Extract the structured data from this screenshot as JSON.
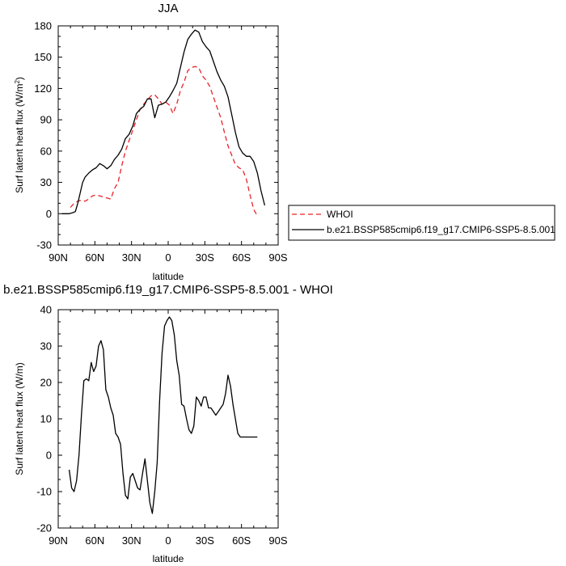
{
  "chart_data": [
    {
      "type": "line",
      "title": "JJA",
      "xlabel": "latitude",
      "ylabel": "Surf latent heat flux (W/m",
      "ylabel_sup": "2",
      "ylabel_close": ")",
      "xlim": [
        90,
        -90
      ],
      "ylim": [
        -30,
        180
      ],
      "xticks": [
        {
          "value": 90,
          "label": "90N"
        },
        {
          "value": 60,
          "label": "60N"
        },
        {
          "value": 30,
          "label": "30N"
        },
        {
          "value": 0,
          "label": "0"
        },
        {
          "value": -30,
          "label": "30S"
        },
        {
          "value": -60,
          "label": "60S"
        },
        {
          "value": -90,
          "label": "90S"
        }
      ],
      "yticks": [
        -30,
        0,
        30,
        60,
        90,
        120,
        150,
        180
      ],
      "grid": false,
      "legend_position": "right-outside",
      "series": [
        {
          "name": "WHOI",
          "color": "#e8232a",
          "dash": "dashed",
          "x": [
            80,
            77,
            74,
            71,
            68,
            65,
            62,
            59,
            56,
            53,
            50,
            47,
            44,
            41,
            38,
            35,
            32,
            29,
            26,
            23,
            20,
            17,
            14,
            11,
            8,
            5,
            2,
            -1,
            -4,
            -7,
            -10,
            -13,
            -16,
            -19,
            -22,
            -25,
            -28,
            -31,
            -34,
            -37,
            -40,
            -43,
            -46,
            -49,
            -52,
            -55,
            -58,
            -61,
            -64,
            -67,
            -70,
            -73
          ],
          "y": [
            6,
            10,
            12,
            13,
            12,
            14,
            17,
            18,
            17,
            16,
            15,
            14,
            24,
            30,
            46,
            60,
            70,
            80,
            90,
            100,
            105,
            109,
            113,
            114,
            110,
            105,
            107,
            104,
            96,
            105,
            118,
            126,
            137,
            140,
            141,
            140,
            132,
            128,
            122,
            112,
            102,
            92,
            78,
            65,
            56,
            47,
            44,
            42,
            33,
            18,
            4,
            -2
          ]
        },
        {
          "name": "b.e21.BSSP585cmip6.f19_g17.CMIP6-SSP5-8.5.001",
          "color": "#000000",
          "dash": "solid",
          "x": [
            87,
            84,
            81,
            78,
            76,
            74,
            72,
            70,
            68,
            65,
            62,
            59,
            56,
            53,
            50,
            47,
            44,
            41,
            38,
            35,
            32,
            29,
            26,
            23,
            20,
            17,
            14,
            11,
            8,
            5,
            2,
            -1,
            -4,
            -7,
            -10,
            -13,
            -16,
            -19,
            -22,
            -25,
            -28,
            -31,
            -34,
            -37,
            -40,
            -43,
            -46,
            -49,
            -52,
            -55,
            -58,
            -61,
            -64,
            -67,
            -70,
            -73,
            -76,
            -79
          ],
          "y": [
            0,
            0,
            0,
            1,
            2,
            10,
            20,
            30,
            35,
            39,
            42,
            44,
            48,
            46,
            43,
            46,
            52,
            56,
            62,
            72,
            76,
            84,
            96,
            100,
            103,
            110,
            110,
            92,
            104,
            105,
            107,
            112,
            118,
            125,
            140,
            155,
            167,
            172,
            176,
            174,
            165,
            160,
            156,
            146,
            136,
            128,
            122,
            112,
            95,
            78,
            64,
            58,
            55,
            55,
            50,
            39,
            22,
            8
          ]
        }
      ]
    },
    {
      "type": "line",
      "title": "b.e21.BSSP585cmip6.f19_g17.CMIP6-SSP5-8.5.001 - WHOI",
      "xlabel": "latitude",
      "ylabel": "Surf latent heat flux (W/m)",
      "xlim": [
        90,
        -90
      ],
      "ylim": [
        -20,
        40
      ],
      "xticks": [
        {
          "value": 90,
          "label": "90N"
        },
        {
          "value": 60,
          "label": "60N"
        },
        {
          "value": 30,
          "label": "30N"
        },
        {
          "value": 0,
          "label": "0"
        },
        {
          "value": -30,
          "label": "30S"
        },
        {
          "value": -60,
          "label": "60S"
        },
        {
          "value": -90,
          "label": "90S"
        }
      ],
      "yticks": [
        -20,
        -10,
        0,
        10,
        20,
        30,
        40
      ],
      "grid": false,
      "series": [
        {
          "color": "#000000",
          "dash": "solid",
          "x": [
            81,
            79,
            77,
            75,
            73,
            71,
            69,
            67,
            65,
            63,
            61,
            59,
            57,
            55,
            53,
            51,
            49,
            47,
            45,
            43,
            41,
            39,
            37,
            35,
            33,
            31,
            29,
            27,
            25,
            23,
            21,
            19,
            17,
            15,
            13,
            11,
            9,
            7,
            5,
            3,
            1,
            -1,
            -3,
            -5,
            -7,
            -9,
            -11,
            -13,
            -15,
            -17,
            -19,
            -21,
            -23,
            -25,
            -27,
            -29,
            -31,
            -33,
            -35,
            -37,
            -39,
            -41,
            -43,
            -45,
            -47,
            -49,
            -51,
            -53,
            -55,
            -57,
            -59,
            -61,
            -63,
            -65,
            -67,
            -69,
            -71,
            -73
          ],
          "y": [
            -4,
            -9,
            -10,
            -7,
            0,
            11,
            20.5,
            21,
            20.5,
            25.5,
            23,
            24.5,
            30,
            31.5,
            29,
            18,
            16,
            13,
            11,
            6,
            5,
            3,
            -5,
            -11,
            -12,
            -6,
            -5,
            -7,
            -9,
            -9.5,
            -5,
            -1,
            -7,
            -13,
            -16,
            -10,
            -2,
            15,
            28,
            35.5,
            37,
            38,
            37,
            33,
            26,
            22,
            14,
            13.5,
            10,
            7,
            6,
            8,
            16,
            15,
            13.5,
            16,
            16,
            13,
            13,
            12,
            11,
            12,
            13,
            14,
            17,
            22,
            19,
            14,
            10,
            6,
            5,
            5,
            5,
            5,
            5,
            5,
            5,
            5
          ]
        }
      ]
    }
  ]
}
